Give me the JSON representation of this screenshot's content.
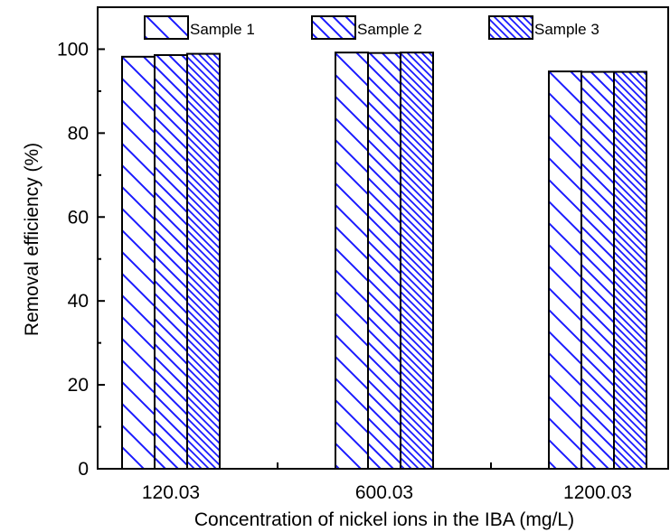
{
  "chart_data": {
    "type": "bar",
    "categories": [
      "120.03",
      "600.03",
      "1200.03"
    ],
    "series": [
      {
        "name": "Sample 1",
        "values": [
          98.2,
          99.2,
          94.7
        ]
      },
      {
        "name": "Sample 2",
        "values": [
          98.6,
          99.1,
          94.6
        ]
      },
      {
        "name": "Sample 3",
        "values": [
          98.9,
          99.2,
          94.6
        ]
      }
    ],
    "title": "",
    "xlabel": "Concentration of nickel ions in the IBA (mg/L)",
    "ylabel": "Removal efficiency (%)",
    "ylim": [
      0,
      110
    ],
    "yticks": [
      0,
      20,
      40,
      60,
      80,
      100
    ],
    "grid": false,
    "legend_position": "top",
    "colors": {
      "pattern": "#1a1aff",
      "bar_fill": "#ffffff",
      "outline": "#000000"
    }
  }
}
